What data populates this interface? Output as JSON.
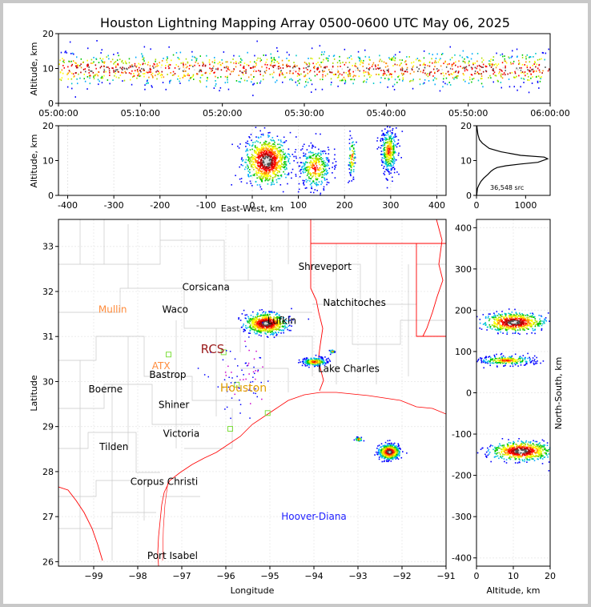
{
  "title": "Houston Lightning Mapping Array 0500-0600 UTC May 06, 2025",
  "colors": {
    "state_border": "#ff0000",
    "county_border": "#c8c8c8",
    "city_label": "#000000",
    "station_orange": "#ff8c3c",
    "station_gold": "#e0a000",
    "station_dark": "#9b1c1c",
    "platform_label": "#2020ff",
    "station_marker": "#7fdf3f"
  },
  "chart_data": [
    {
      "id": "altitude-vs-time",
      "type": "scatter",
      "xlabel": "",
      "ylabel": "Altitude, km",
      "xticks": [
        "05:00:00",
        "05:10:00",
        "05:20:00",
        "05:30:00",
        "05:40:00",
        "05:50:00",
        "06:00:00"
      ],
      "xlim": [
        0,
        60
      ],
      "ylim": [
        0,
        20
      ],
      "yticks": [
        0,
        10,
        20
      ],
      "altitude_band_km": [
        3,
        17
      ],
      "core_altitude_km": 10
    },
    {
      "id": "altitude-vs-east-west",
      "type": "scatter",
      "xlabel": "East-West, km",
      "ylabel": "Altitude, km",
      "xlim": [
        -420,
        420
      ],
      "xticks": [
        -400,
        -300,
        -200,
        -100,
        0,
        100,
        200,
        300,
        400
      ],
      "ylim": [
        0,
        20
      ],
      "yticks": [
        0,
        10,
        20
      ],
      "clusters": [
        {
          "x_km": 30,
          "spread_km": 45,
          "alt_km": 10,
          "density": "high"
        },
        {
          "x_km": 135,
          "spread_km": 35,
          "alt_km": 8,
          "density": "medium"
        },
        {
          "x_km": 215,
          "spread_km": 8,
          "alt_km": 11,
          "density": "low"
        },
        {
          "x_km": 295,
          "spread_km": 18,
          "alt_km": 13,
          "density": "medium"
        }
      ]
    },
    {
      "id": "source-altitude-histogram",
      "type": "line",
      "xlim": [
        0,
        1500
      ],
      "xticks": [
        0,
        1000
      ],
      "ylim": [
        0,
        20
      ],
      "yticks": [
        0,
        10,
        20
      ],
      "annotation": "36,548 src",
      "x": [
        5,
        20,
        50,
        90,
        150,
        230,
        300,
        350,
        420,
        600,
        900,
        1250,
        1450,
        1380,
        900,
        500,
        260,
        120,
        60,
        30,
        15,
        8
      ],
      "y": [
        0,
        2,
        3,
        4,
        5,
        6,
        7,
        7.5,
        8,
        8.5,
        9,
        9.5,
        10.5,
        11,
        11.5,
        12.5,
        13.5,
        15,
        16,
        17.5,
        19,
        20
      ]
    },
    {
      "id": "plan-view-map",
      "type": "scatter",
      "xlabel": "Longitude",
      "ylabel": "Latitude",
      "xlim": [
        -99.8,
        -91
      ],
      "ylim": [
        25.9,
        33.6
      ],
      "xticks": [
        -99,
        -98,
        -97,
        -96,
        -95,
        -94,
        -93,
        -92,
        -91
      ],
      "xtick_labels": [
        "−99",
        "−98",
        "−97",
        "−96",
        "−95",
        "−94",
        "−93",
        "−92",
        "−91"
      ],
      "yticks": [
        26,
        27,
        28,
        29,
        30,
        31,
        32,
        33
      ],
      "storm_cells": [
        {
          "lon": -95.1,
          "lat": 31.3,
          "rx": 0.45,
          "ry": 0.22,
          "density": "high"
        },
        {
          "lon": -94.0,
          "lat": 30.45,
          "rx": 0.3,
          "ry": 0.1,
          "density": "medium"
        },
        {
          "lon": -93.6,
          "lat": 30.68,
          "rx": 0.06,
          "ry": 0.04,
          "density": "low"
        },
        {
          "lon": -93.0,
          "lat": 28.73,
          "rx": 0.1,
          "ry": 0.05,
          "density": "low"
        },
        {
          "lon": -92.3,
          "lat": 28.45,
          "rx": 0.22,
          "ry": 0.15,
          "density": "high"
        }
      ],
      "cities": [
        {
          "name": "Shreveport",
          "lon": -93.75,
          "lat": 32.55
        },
        {
          "name": "Corsicana",
          "lon": -96.45,
          "lat": 32.1
        },
        {
          "name": "Natchitoches",
          "lon": -93.08,
          "lat": 31.75
        },
        {
          "name": "Waco",
          "lon": -97.15,
          "lat": 31.6
        },
        {
          "name": "Lufkin",
          "lon": -94.73,
          "lat": 31.35
        },
        {
          "name": "Bastrop",
          "lon": -97.32,
          "lat": 30.15
        },
        {
          "name": "Lake Charles",
          "lon": -93.21,
          "lat": 30.28
        },
        {
          "name": "Boerne",
          "lon": -98.73,
          "lat": 29.83
        },
        {
          "name": "Shiner",
          "lon": -97.18,
          "lat": 29.48
        },
        {
          "name": "Victoria",
          "lon": -97.01,
          "lat": 28.84
        },
        {
          "name": "Tilden",
          "lon": -98.54,
          "lat": 28.55
        },
        {
          "name": "Corpus Christi",
          "lon": -97.4,
          "lat": 27.78
        },
        {
          "name": "Port Isabel",
          "lon": -97.21,
          "lat": 26.13
        }
      ],
      "stations": [
        {
          "name": "Mullin",
          "lon": -98.57,
          "lat": 31.6,
          "color": "orange",
          "size": 12
        },
        {
          "name": "ATX",
          "lon": -97.47,
          "lat": 30.35,
          "color": "orange",
          "size": 12
        },
        {
          "name": "RCS",
          "lon": -96.3,
          "lat": 30.7,
          "color": "dark",
          "size": 15
        },
        {
          "name": "Houston",
          "lon": -95.6,
          "lat": 29.85,
          "color": "gold",
          "size": 14
        }
      ],
      "platform": {
        "name": "Hoover-Diana",
        "lon": -94.0,
        "lat": 27.0
      },
      "station_markers": [
        {
          "lon": -97.3,
          "lat": 30.6
        },
        {
          "lon": -96.05,
          "lat": 30.65
        },
        {
          "lon": -95.75,
          "lat": 29.93
        },
        {
          "lon": -95.9,
          "lat": 28.95
        },
        {
          "lon": -95.05,
          "lat": 29.3
        }
      ]
    },
    {
      "id": "north-south-vs-altitude",
      "type": "scatter",
      "xlabel": "Altitude, km",
      "ylabel": "North-South, km",
      "xlim": [
        0,
        20
      ],
      "xticks": [
        0,
        10,
        20
      ],
      "ylim": [
        -420,
        420
      ],
      "yticks": [
        -400,
        -300,
        -200,
        -100,
        0,
        100,
        200,
        300,
        400
      ],
      "clusters": [
        {
          "y_km": 172,
          "spread_km": 22,
          "alt_km": 10,
          "density": "high"
        },
        {
          "y_km": 80,
          "spread_km": 12,
          "alt_km": 8,
          "density": "medium"
        },
        {
          "y_km": -140,
          "spread_km": 22,
          "alt_km": 12,
          "density": "high"
        }
      ]
    }
  ]
}
